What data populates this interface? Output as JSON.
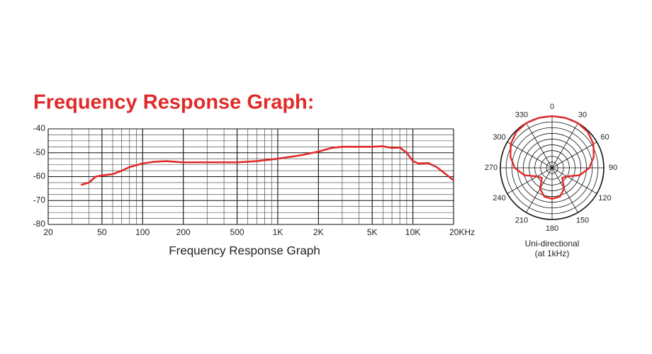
{
  "chart_data": [
    {
      "type": "line",
      "title": "Frequency Response Graph:",
      "xlabel": "Frequency Response Graph",
      "xscale": "log",
      "color": "#e02a2a",
      "grid": true,
      "x": [
        35,
        40,
        45,
        50,
        60,
        70,
        80,
        100,
        120,
        150,
        200,
        300,
        500,
        700,
        1000,
        1500,
        2000,
        2500,
        3000,
        5000,
        6000,
        7000,
        8000,
        9000,
        10000,
        11000,
        13000,
        15000,
        20000
      ],
      "values": [
        -63.5,
        -62.5,
        -60,
        -59.5,
        -59,
        -57.5,
        -56,
        -54.5,
        -53.8,
        -53.5,
        -54,
        -54,
        -54,
        -53.5,
        -52.5,
        -51,
        -49.5,
        -48,
        -47.5,
        -47.5,
        -47.3,
        -48,
        -47.8,
        -50,
        -53.5,
        -54.5,
        -54.3,
        -56,
        -61.5
      ],
      "xlim": [
        20,
        20000
      ],
      "xticks": [
        20,
        50,
        100,
        200,
        500,
        {
          "value": 1000,
          "label": "1K"
        },
        {
          "value": 2000,
          "label": "2K"
        },
        {
          "value": 5000,
          "label": "5K"
        },
        {
          "value": 10000,
          "label": "10K"
        },
        {
          "value": 20000,
          "label": "20KHz"
        }
      ],
      "x_minor_ticks": [
        30,
        40,
        60,
        70,
        80,
        90,
        300,
        400,
        600,
        700,
        800,
        900,
        3000,
        4000,
        6000,
        7000,
        8000,
        9000
      ],
      "ylim": [
        -80,
        -40
      ],
      "yticks": [
        -40,
        -50,
        -60,
        -70,
        -80
      ],
      "y_minor_ticks": [
        -42.5,
        -45,
        -47.5,
        -52.5,
        -55,
        -57.5,
        -62.5,
        -65,
        -67.5,
        -72.5,
        -75,
        -77.5
      ]
    },
    {
      "type": "polar",
      "title": "Uni-directional",
      "subtitle": "(at 1kHz)",
      "color": "#e02a2a",
      "theta": [
        0,
        15,
        30,
        45,
        60,
        75,
        90,
        105,
        120,
        135,
        150,
        165,
        180,
        195,
        210,
        225,
        240,
        255,
        270,
        285,
        300,
        315,
        330,
        345,
        360
      ],
      "r": [
        9,
        9,
        9,
        8.8,
        8.3,
        7.5,
        6.5,
        5,
        3,
        2.5,
        4.2,
        5.2,
        5.4,
        5.2,
        4.2,
        2.5,
        3,
        5,
        6.5,
        7.5,
        8.3,
        8.8,
        9,
        9,
        9
      ],
      "rlim": [
        0,
        9
      ],
      "rticks": [
        1,
        2,
        3,
        4,
        5,
        6,
        7,
        8,
        9
      ],
      "angle_ticks": [
        0,
        30,
        60,
        90,
        120,
        150,
        180,
        210,
        240,
        270,
        300,
        330
      ]
    }
  ]
}
